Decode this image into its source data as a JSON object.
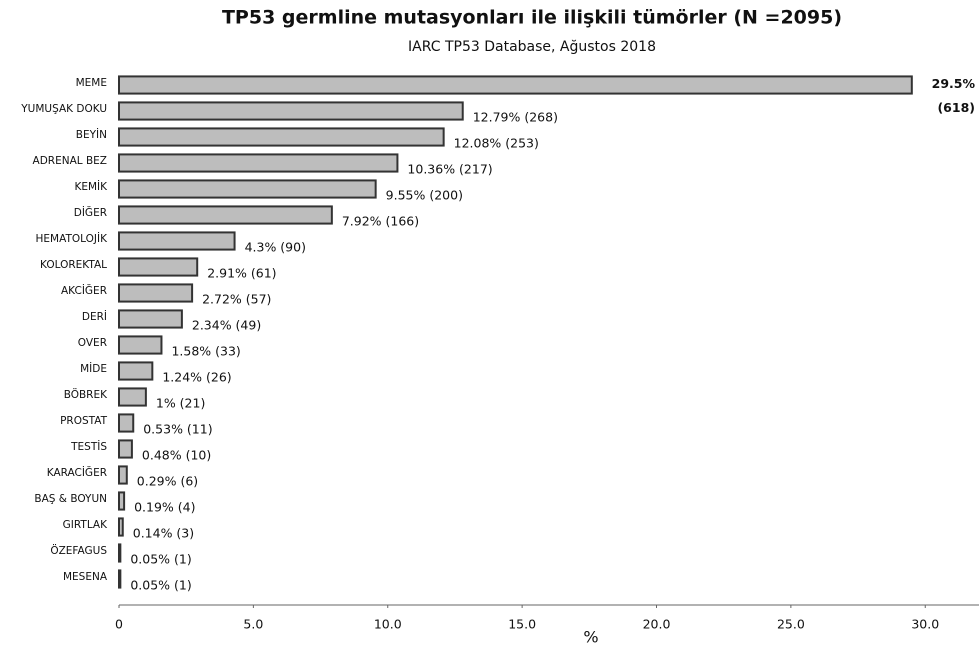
{
  "chart_data": {
    "type": "bar",
    "orientation": "horizontal",
    "title": "TP53 germline mutasyonları ile ilişkili tümörler (N =2095)",
    "subtitle": "IARC TP53 Database, Ağustos 2018",
    "x_label": "%",
    "categories": [
      "MEME",
      "YUMUŞAK DOKU",
      "BEYİN",
      "ADRENAL BEZ",
      "KEMİK",
      "DİĞER",
      "HEMATOLOJİK",
      "KOLOREKTAL",
      "AKCİĞER",
      "DERİ",
      "OVER",
      "MİDE",
      "BÖBREK",
      "PROSTAT",
      "TESTİS",
      "KARACİĞER",
      "BAŞ & BOYUN",
      "GIRTLAK",
      "ÖZEFAGUS",
      "MESENA"
    ],
    "values": [
      29.5,
      12.79,
      12.08,
      10.36,
      9.55,
      7.92,
      4.3,
      2.91,
      2.72,
      2.34,
      1.58,
      1.24,
      1,
      0.53,
      0.48,
      0.29,
      0.19,
      0.14,
      0.05,
      0.05
    ],
    "value_labels": [
      "29.5% (618)",
      "12.79% (268)",
      "12.08% (253)",
      "10.36% (217)",
      "9.55% (200)",
      "7.92% (166)",
      "4.3% (90)",
      "2.91% (61)",
      "2.72% (57)",
      "2.34% (49)",
      "1.58% (33)",
      "1.24% (26)",
      "1% (21)",
      "0.53% (11)",
      "0.48% (10)",
      "0.29% (6)",
      "0.19% (4)",
      "0.14% (3)",
      "0.05% (1)",
      "0.05% (1)"
    ],
    "color": "#bdbdbd",
    "xlim": [
      0,
      32
    ],
    "xticks": [
      0,
      {
        "value": 5,
        "label": "5.0"
      },
      {
        "value": 10,
        "label": "10.0"
      },
      {
        "value": 15,
        "label": "15.0"
      },
      {
        "value": 20,
        "label": "20.0"
      },
      {
        "value": 25,
        "label": "25.0"
      },
      {
        "value": 30,
        "label": "30.0"
      }
    ],
    "grid": false
  }
}
